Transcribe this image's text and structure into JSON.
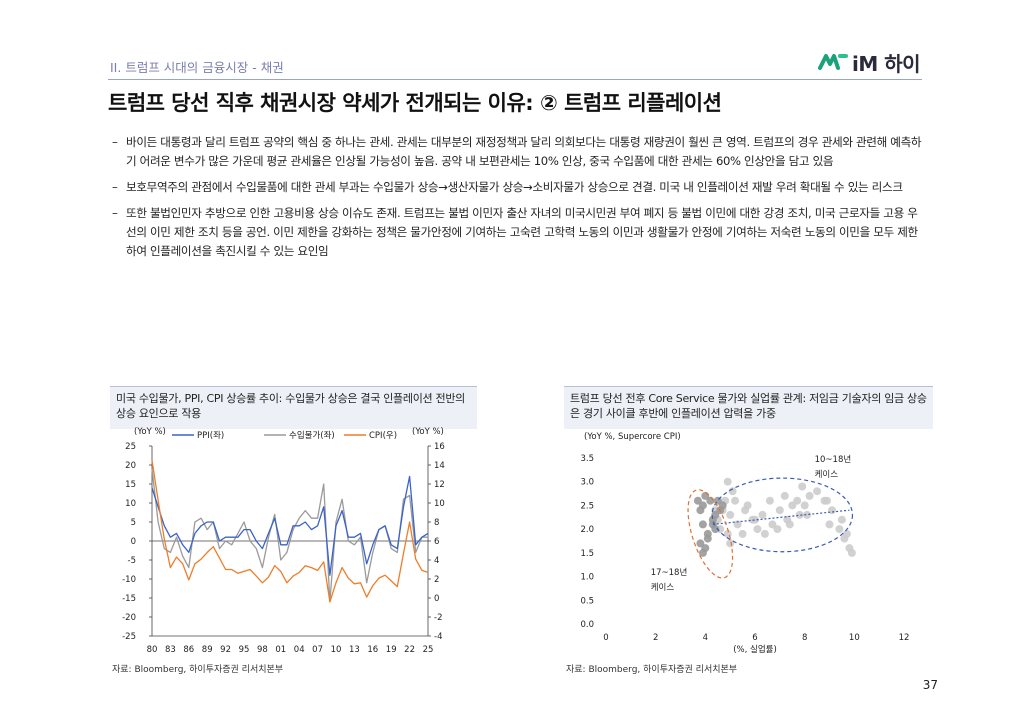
{
  "header": {
    "section_label": "II. 트럼프 시대의 금융시장 - 채권",
    "logo_text": "iM 하이",
    "title": "트럼프 당선 직후 채권시장 약세가 전개되는 이유: ② 트럼프 리플레이션"
  },
  "bullets": [
    {
      "dash": "–",
      "text": "바이든 대통령과 달리 트럼프 공약의 핵심 중 하나는 관세. 관세는 대부분의 재정정책과 달리 의회보다는 대통령 재량권이 훨씬 큰 영역. 트럼프의 경우 관세와 관련해 예측하기 어려운 변수가 많은 가운데 평균 관세율은 인상될 가능성이 높음. 공약 내 보편관세는 10% 인상, 중국 수입품에 대한 관세는 60% 인상안을 담고 있음"
    },
    {
      "dash": "–",
      "text": "보호무역주의 관점에서 수입물품에 대한 관세 부과는 수입물가 상승→생산자물가 상승→소비자물가 상승으로 견결. 미국 내 인플레이션 재발 우려 확대될 수 있는 리스크"
    },
    {
      "dash": "–",
      "text": "또한 불법인민자 추방으로 인한 고용비용 상승 이슈도 존재. 트럼프는 불법 이민자 출산 자녀의 미국시민권 부여 폐지 등 불법 이민에 대한 강경 조치, 미국 근로자들 고용 우선의 이민 제한 조치 등을 공언. 이민 제한을 강화하는 정책은 물가안정에 기여하는 고숙련 고학력 노동의 이민과 생활물가 안정에 기여하는 저숙련 노동의 이민을 모두 제한하여 인플레이션을 촉진시킬 수 있는 요인임"
    }
  ],
  "left_panel": {
    "title": "미국 수입물가, PPI, CPI 상승률 추이: 수입물가 상승은 결국 인플레이션 전반의 상승 요인으로 작용",
    "source": "자료: Bloomberg, 하이투자증권 리서치본부"
  },
  "right_panel": {
    "title": "트럼프 당선 전후 Core Service 물가와 실업률 관계: 저임금 기술자의 임금 상승은 경기 사이클 후반에 인플레이션 압력을 가중",
    "source": "자료: Bloomberg, 하이투자증권 리서치본부"
  },
  "page_number": "37",
  "chart_data": [
    {
      "type": "line",
      "y_left_unit": "(YoY %)",
      "y_right_unit": "(YoY %)",
      "ylim_left": [
        -25,
        25
      ],
      "ylim_right": [
        -4,
        16
      ],
      "y_left_ticks": [
        "25",
        "20",
        "15",
        "10",
        "5",
        "0",
        "-5",
        "-10",
        "-15",
        "-20",
        "-25"
      ],
      "y_right_ticks": [
        "16",
        "14",
        "12",
        "10",
        "8",
        "6",
        "4",
        "2",
        "0",
        "-2",
        "-4"
      ],
      "x_ticks": [
        "80",
        "83",
        "86",
        "89",
        "92",
        "95",
        "98",
        "01",
        "04",
        "07",
        "10",
        "13",
        "16",
        "19",
        "22",
        "25"
      ],
      "xlim": [
        1980,
        2025
      ],
      "series": [
        {
          "name": "PPI(좌)",
          "axis": "left",
          "color": "#3a63c8",
          "x": [
            1980,
            1981,
            1982,
            1983,
            1984,
            1985,
            1986,
            1987,
            1988,
            1989,
            1990,
            1991,
            1992,
            1993,
            1994,
            1995,
            1996,
            1997,
            1998,
            1999,
            2000,
            2001,
            2002,
            2003,
            2004,
            2005,
            2006,
            2007,
            2008,
            2009,
            2010,
            2011,
            2012,
            2013,
            2014,
            2015,
            2016,
            2017,
            2018,
            2019,
            2020,
            2021,
            2022,
            2023,
            2024,
            2025
          ],
          "values": [
            14,
            9,
            4,
            1,
            2,
            -1,
            -3,
            2,
            4,
            5,
            5,
            0,
            1,
            1,
            1,
            3,
            3,
            0,
            -2,
            2,
            6,
            -1,
            -1,
            4,
            4,
            5,
            3,
            4,
            9,
            -9,
            4,
            8,
            1,
            1,
            2,
            -6,
            -1,
            3,
            4,
            -1,
            -2,
            9,
            17,
            -1,
            1,
            2
          ]
        },
        {
          "name": "수입물가(좌)",
          "axis": "left",
          "color": "#9a9a9a",
          "x": [
            1980,
            1981,
            1982,
            1983,
            1984,
            1985,
            1986,
            1987,
            1988,
            1989,
            1990,
            1991,
            1992,
            1993,
            1994,
            1995,
            1996,
            1997,
            1998,
            1999,
            2000,
            2001,
            2002,
            2003,
            2004,
            2005,
            2006,
            2007,
            2008,
            2009,
            2010,
            2011,
            2012,
            2013,
            2014,
            2015,
            2016,
            2017,
            2018,
            2019,
            2020,
            2021,
            2022,
            2023,
            2024,
            2025
          ],
          "values": [
            19,
            5,
            -2,
            -3,
            1,
            -4,
            -7,
            5,
            6,
            3,
            5,
            -2,
            0,
            -1,
            2,
            5,
            0,
            -2,
            -7,
            1,
            7,
            -5,
            -3,
            3,
            6,
            8,
            6,
            6,
            15,
            -16,
            5,
            11,
            0,
            -1,
            1,
            -11,
            -3,
            3,
            4,
            -2,
            -3,
            11,
            12,
            -3,
            1,
            1
          ]
        },
        {
          "name": "CPI(우)",
          "axis": "right",
          "color": "#ee7d2a",
          "x": [
            1980,
            1981,
            1982,
            1983,
            1984,
            1985,
            1986,
            1987,
            1988,
            1989,
            1990,
            1991,
            1992,
            1993,
            1994,
            1995,
            1996,
            1997,
            1998,
            1999,
            2000,
            2001,
            2002,
            2003,
            2004,
            2005,
            2006,
            2007,
            2008,
            2009,
            2010,
            2011,
            2012,
            2013,
            2014,
            2015,
            2016,
            2017,
            2018,
            2019,
            2020,
            2021,
            2022,
            2023,
            2024,
            2025
          ],
          "values": [
            14.5,
            10.3,
            6.2,
            3.2,
            4.3,
            3.6,
            1.9,
            3.6,
            4.1,
            4.8,
            5.4,
            4.2,
            3.0,
            3.0,
            2.6,
            2.8,
            3.0,
            2.3,
            1.6,
            2.2,
            3.4,
            2.8,
            1.6,
            2.3,
            2.7,
            3.4,
            3.2,
            2.9,
            3.8,
            -0.4,
            1.6,
            3.2,
            2.1,
            1.5,
            1.6,
            0.1,
            1.3,
            2.1,
            2.4,
            1.8,
            1.2,
            4.7,
            8.0,
            4.1,
            2.9,
            2.7
          ]
        }
      ]
    },
    {
      "type": "scatter",
      "y_unit": "(YoY %, Supercore CPI)",
      "xlabel": "(%, 실업률)",
      "xlim": [
        0,
        12
      ],
      "ylim": [
        0.0,
        3.5
      ],
      "x_ticks": [
        "0",
        "2",
        "4",
        "6",
        "8",
        "10",
        "12"
      ],
      "y_ticks": [
        "3.5",
        "3.0",
        "2.5",
        "2.0",
        "1.5",
        "1.0",
        "0.5",
        "0.0"
      ],
      "annotations": [
        {
          "label_line1": "10~18년",
          "label_line2": "케이스",
          "color": "#3a5bb8"
        },
        {
          "label_line1": "17~18년",
          "label_line2": "케이스",
          "color": "#e07030"
        }
      ],
      "series": [
        {
          "name": "10~18년",
          "color": "#cccccc",
          "x": [
            9.8,
            9.6,
            9.4,
            9.9,
            9.0,
            9.1,
            8.9,
            8.5,
            8.2,
            8.0,
            7.9,
            7.7,
            7.8,
            7.5,
            7.3,
            7.2,
            7.0,
            6.7,
            6.6,
            6.3,
            6.1,
            5.9,
            5.7,
            5.5,
            5.3,
            5.0,
            5.1,
            4.9,
            4.8,
            4.7,
            4.9,
            5.0,
            4.6,
            4.5,
            4.4,
            5.2,
            5.6,
            6.0,
            6.4,
            6.9,
            7.4,
            8.1,
            8.8,
            9.5,
            9.7
          ],
          "values": [
            1.6,
            1.8,
            2.0,
            1.5,
            2.1,
            2.4,
            2.6,
            2.8,
            2.7,
            2.5,
            2.9,
            2.6,
            2.3,
            2.5,
            2.2,
            2.7,
            2.4,
            2.1,
            2.6,
            2.3,
            2.0,
            2.2,
            2.5,
            1.9,
            2.1,
            2.3,
            2.8,
            3.0,
            2.6,
            2.4,
            1.9,
            1.7,
            2.0,
            2.2,
            2.4,
            2.6,
            2.4,
            2.2,
            1.9,
            2.0,
            2.1,
            2.3,
            2.6,
            2.2,
            1.9
          ]
        },
        {
          "name": "17~18년",
          "color": "#999999",
          "x": [
            4.7,
            4.6,
            4.5,
            4.4,
            4.3,
            4.1,
            4.0,
            3.9,
            3.8,
            3.9,
            4.0,
            4.2,
            4.3,
            4.4,
            4.1,
            3.8,
            3.7,
            3.9
          ],
          "values": [
            2.5,
            2.4,
            2.6,
            2.3,
            2.1,
            1.9,
            1.6,
            1.5,
            1.7,
            2.5,
            2.7,
            2.6,
            2.2,
            2.0,
            1.8,
            2.4,
            2.6,
            2.1
          ]
        }
      ]
    }
  ]
}
